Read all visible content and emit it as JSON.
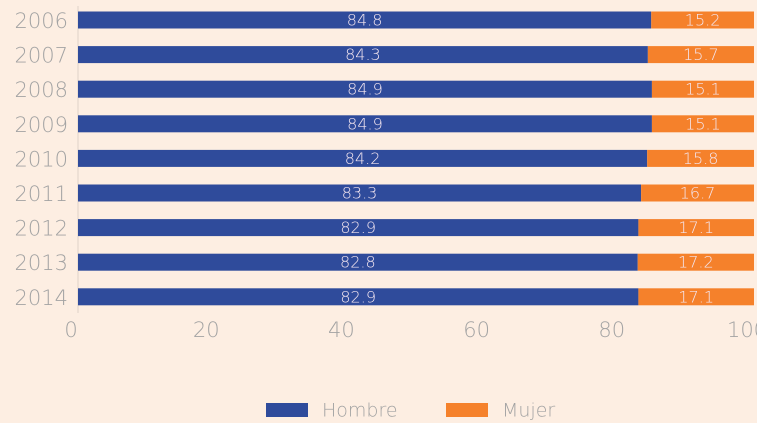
{
  "chart_data": {
    "type": "stacked_barh",
    "categories": [
      "2006",
      "2007",
      "2008",
      "2009",
      "2010",
      "2011",
      "2012",
      "2013",
      "2014"
    ],
    "series": [
      {
        "name": "Hombre",
        "color": "#2f4b9b",
        "values": [
          84.8,
          84.3,
          84.9,
          84.9,
          84.2,
          83.3,
          82.9,
          82.8,
          82.9
        ]
      },
      {
        "name": "Mujer",
        "color": "#f5812b",
        "values": [
          15.2,
          15.7,
          15.1,
          15.1,
          15.8,
          16.7,
          17.1,
          17.2,
          17.1
        ]
      }
    ],
    "xlim": [
      0,
      100
    ],
    "xticks": [
      0,
      20,
      40,
      60,
      80,
      100
    ],
    "legend": "bottom"
  }
}
